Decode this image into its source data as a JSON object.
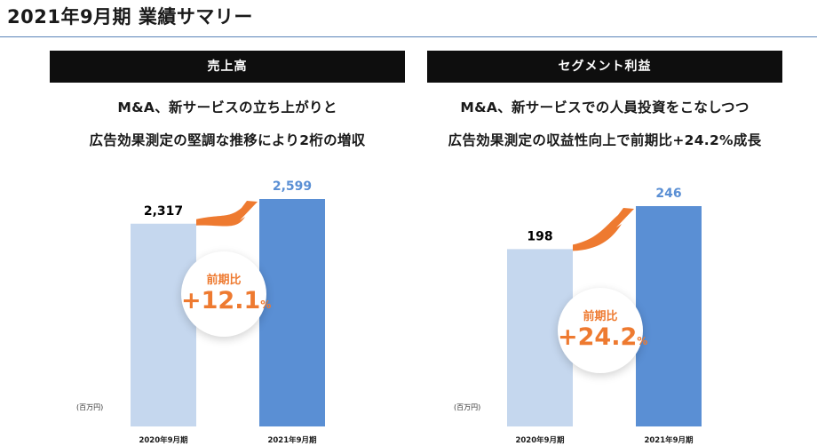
{
  "page": {
    "title": "2021年9月期 業績サマリー"
  },
  "panels": [
    {
      "header": "売上高",
      "headline_lines": [
        "M&A、新サービスの立ち上がりと",
        "広告効果測定の堅調な推移により2桁の増収"
      ],
      "badge": {
        "caption": "前期比",
        "value": "+12.1",
        "unit": "%"
      }
    },
    {
      "header": "セグメント利益",
      "headline_lines": [
        "M&A、新サービスでの人員投資をこなしつつ",
        "広告効果測定の収益性向上で前期比+24.2%成長"
      ],
      "badge": {
        "caption": "前期比",
        "value": "+24.2",
        "unit": "%"
      }
    }
  ],
  "colors": {
    "header_bg": "#0e0e0e",
    "bar_prior": "#c5d7ee",
    "bar_current": "#5a8fd4",
    "current_value_text": "#5a8fd4",
    "accent_orange": "#ee7a30",
    "title_rule": "#5b83b8"
  },
  "icons": [
    "growth-arrow-icon"
  ],
  "chart_data": [
    {
      "type": "bar",
      "unit_label": "(百万円)",
      "categories": [
        "2020年9月期",
        "2021年9月期"
      ],
      "values": [
        2317,
        2599
      ],
      "value_labels": [
        "2,317",
        "2,599"
      ],
      "axis_visible": false
    },
    {
      "type": "bar",
      "unit_label": "(百万円)",
      "categories": [
        "2020年9月期",
        "2021年9月期"
      ],
      "values": [
        198,
        246
      ],
      "value_labels": [
        "198",
        "246"
      ],
      "axis_visible": false
    }
  ]
}
